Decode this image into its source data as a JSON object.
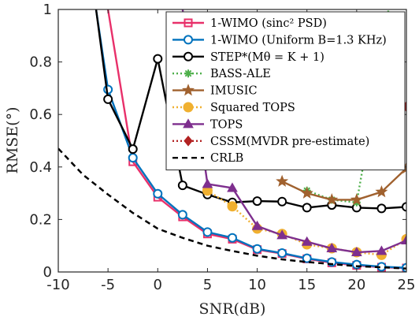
{
  "chart_data": {
    "type": "line",
    "xlabel": "SNR(dB)",
    "ylabel": "RMSE(°)",
    "xlim": [
      -10,
      25
    ],
    "ylim": [
      0,
      1
    ],
    "xticks": [
      "-10",
      "-5",
      "0",
      "5",
      "10",
      "15",
      "20",
      "25"
    ],
    "yticks": [
      "0",
      "0.2",
      "0.4",
      "0.6",
      "0.8",
      "1"
    ],
    "grid": false,
    "legend_position": "top-right",
    "series": [
      {
        "name": "1-WIMO (sinc² PSD)",
        "color": "#e8306a",
        "marker": "square",
        "dash": "solid",
        "x": [
          -5,
          -2.5,
          0,
          2.5,
          5,
          7.5,
          10,
          12.5,
          15,
          17.5,
          20,
          22.5,
          25
        ],
        "y": [
          1.0,
          0.42,
          0.285,
          0.21,
          0.145,
          0.125,
          0.085,
          0.07,
          0.05,
          0.035,
          0.025,
          0.018,
          0.015
        ]
      },
      {
        "name": "1-WIMO (Uniform B=1.3 KHz)",
        "color": "#0072bd",
        "marker": "circle",
        "dash": "solid",
        "x": [
          -6.2,
          -5,
          -2.5,
          0,
          2.5,
          5,
          7.5,
          10,
          12.5,
          15,
          17.5,
          20,
          22.5,
          25
        ],
        "y": [
          1.0,
          0.695,
          0.435,
          0.298,
          0.218,
          0.152,
          0.13,
          0.088,
          0.072,
          0.052,
          0.038,
          0.028,
          0.02,
          0.016
        ]
      },
      {
        "name": "STEP*(Mθ = K + 1)",
        "color": "#000000",
        "marker": "circle",
        "dash": "solid",
        "x": [
          -6.2,
          -5,
          -2.5,
          0,
          2.5,
          5,
          7.5,
          10,
          12.5,
          15,
          17.5,
          20,
          22.5,
          25
        ],
        "y": [
          1.0,
          0.658,
          0.468,
          0.812,
          0.33,
          0.295,
          0.265,
          0.27,
          0.268,
          0.245,
          0.255,
          0.245,
          0.242,
          0.248
        ]
      },
      {
        "name": "BASS-ALE",
        "color": "#4daf4a",
        "marker": "asterisk",
        "dash": "dotted",
        "x": [
          15,
          17.5,
          20,
          22.5,
          23.2
        ],
        "y": [
          0.31,
          0.275,
          0.265,
          0.8,
          1.0
        ]
      },
      {
        "name": "IMUSIC",
        "color": "#a0612e",
        "marker": "star",
        "dash": "solid",
        "x": [
          12.5,
          15,
          17.5,
          20,
          22.5,
          25
        ],
        "y": [
          0.345,
          0.3,
          0.275,
          0.275,
          0.305,
          0.395
        ]
      },
      {
        "name": "Squared TOPS",
        "color": "#f0b030",
        "marker": "circle-filled",
        "dash": "dotted",
        "x": [
          5,
          7.5,
          10,
          12.5,
          15,
          17.5,
          20,
          22.5,
          25
        ],
        "y": [
          0.31,
          0.25,
          0.165,
          0.145,
          0.105,
          0.09,
          0.075,
          0.065,
          0.125
        ]
      },
      {
        "name": "TOPS",
        "color": "#7e2f8e",
        "marker": "triangle",
        "dash": "solid",
        "x": [
          2.5,
          5,
          7.5,
          10,
          12.5,
          15,
          17.5,
          20,
          22.5,
          25
        ],
        "y": [
          1.0,
          0.335,
          0.32,
          0.175,
          0.14,
          0.115,
          0.09,
          0.075,
          0.08,
          0.12
        ]
      },
      {
        "name": "CSSM(MVDR pre-estimate)",
        "color": "#b22222",
        "marker": "diamond",
        "dash": "dotted",
        "x": [
          25
        ],
        "y": [
          0.63
        ]
      },
      {
        "name": "CRLB",
        "color": "#000000",
        "marker": "none",
        "dash": "dashed",
        "x": [
          -10,
          -7.5,
          -5,
          -2.5,
          0,
          2.5,
          5,
          7.5,
          10,
          12.5,
          15,
          17.5,
          20,
          22.5,
          25
        ],
        "y": [
          0.47,
          0.37,
          0.295,
          0.225,
          0.165,
          0.13,
          0.1,
          0.08,
          0.062,
          0.048,
          0.038,
          0.03,
          0.022,
          0.018,
          0.013
        ]
      }
    ]
  }
}
